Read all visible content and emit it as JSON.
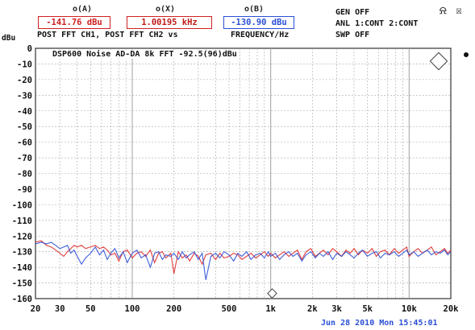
{
  "header": {
    "cursor_a_label": "o(A)",
    "cursor_x_label": "o(X)",
    "cursor_b_label": "o(B)",
    "cursor_a_value": "-141.76 dBu",
    "cursor_x_value": "1.00195 kHz",
    "cursor_b_value": "-130.90 dBu",
    "desc_left": "POST FFT CH1, POST FFT CH2 vs",
    "desc_right": "FREQUENCY/Hz"
  },
  "status": {
    "line1": "GEN OFF",
    "line2": "ANL 1:CONT 2:CONT",
    "line3": "SWP OFF",
    "icon1": "speaker-icon",
    "icon2": "mute-icon"
  },
  "timestamp": "Jun 28 2010 Mon 15:45:01",
  "colors": {
    "ch1": "#e02828",
    "ch2": "#2a4fd6",
    "grid": "#9a9a9a",
    "background": "#ffffff"
  },
  "chart_data": {
    "type": "line",
    "title": "DSP600 Noise AD-DA 8k FFT -92.5(96)dBu",
    "ylabel": "dBu",
    "xlabel": "",
    "x_scale": "log",
    "xlim": [
      20,
      20000
    ],
    "ylim": [
      -160,
      0
    ],
    "y_ticks": [
      0,
      -10,
      -20,
      -30,
      -40,
      -50,
      -60,
      -70,
      -80,
      -90,
      -100,
      -110,
      -120,
      -130,
      -140,
      -150,
      -160
    ],
    "x_ticks": [
      {
        "value": 20,
        "label": "20"
      },
      {
        "value": 30,
        "label": "30"
      },
      {
        "value": 50,
        "label": "50"
      },
      {
        "value": 100,
        "label": "100"
      },
      {
        "value": 200,
        "label": "200"
      },
      {
        "value": 500,
        "label": "500"
      },
      {
        "value": 1000,
        "label": "1k"
      },
      {
        "value": 2000,
        "label": "2k"
      },
      {
        "value": 3000,
        "label": "3k"
      },
      {
        "value": 5000,
        "label": "5k"
      },
      {
        "value": 10000,
        "label": "10k"
      },
      {
        "value": 20000,
        "label": "20k"
      }
    ],
    "grid": true,
    "series": [
      {
        "color": "#e02828",
        "x": [
          20,
          22,
          24,
          26,
          28,
          30,
          32,
          34,
          36,
          38,
          40,
          43,
          46,
          50,
          54,
          58,
          62,
          66,
          70,
          75,
          80,
          86,
          92,
          100,
          108,
          116,
          125,
          135,
          145,
          155,
          165,
          175,
          190,
          200,
          215,
          230,
          245,
          260,
          280,
          300,
          320,
          340,
          370,
          400,
          430,
          460,
          500,
          540,
          580,
          620,
          670,
          720,
          780,
          840,
          900,
          960,
          1000,
          1080,
          1160,
          1250,
          1350,
          1450,
          1560,
          1680,
          1800,
          1950,
          2100,
          2250,
          2400,
          2600,
          2800,
          3000,
          3250,
          3500,
          3750,
          4000,
          4300,
          4600,
          5000,
          5400,
          5800,
          6200,
          6700,
          7200,
          7800,
          8400,
          9000,
          9600,
          10000,
          10800,
          11600,
          12500,
          13500,
          14500,
          15600,
          16800,
          18000,
          19000,
          20000
        ],
        "y": [
          -124,
          -123,
          -126,
          -127,
          -129,
          -131,
          -133,
          -130,
          -128,
          -126,
          -127,
          -126,
          -128,
          -127,
          -126,
          -128,
          -127,
          -129,
          -132,
          -131,
          -136,
          -130,
          -129,
          -134,
          -131,
          -130,
          -133,
          -129,
          -137,
          -131,
          -130,
          -134,
          -131,
          -144,
          -130,
          -134,
          -132,
          -136,
          -131,
          -133,
          -138,
          -132,
          -131,
          -135,
          -131,
          -134,
          -133,
          -131,
          -132,
          -135,
          -133,
          -131,
          -134,
          -132,
          -130,
          -133,
          -131,
          -134,
          -132,
          -130,
          -133,
          -131,
          -129,
          -135,
          -130,
          -128,
          -133,
          -131,
          -129,
          -132,
          -128,
          -130,
          -133,
          -129,
          -131,
          -128,
          -132,
          -129,
          -131,
          -128,
          -133,
          -130,
          -129,
          -132,
          -128,
          -131,
          -129,
          -127,
          -133,
          -130,
          -128,
          -131,
          -129,
          -127,
          -132,
          -130,
          -128,
          -131,
          -129
        ]
      },
      {
        "color": "#2a4fd6",
        "x": [
          20,
          22,
          24,
          26,
          28,
          30,
          32,
          34,
          36,
          38,
          40,
          43,
          46,
          50,
          54,
          58,
          62,
          66,
          70,
          75,
          80,
          86,
          92,
          100,
          108,
          116,
          125,
          135,
          145,
          155,
          165,
          175,
          190,
          200,
          215,
          230,
          245,
          260,
          280,
          300,
          320,
          340,
          370,
          400,
          430,
          460,
          500,
          540,
          580,
          620,
          670,
          720,
          780,
          840,
          900,
          960,
          1000,
          1080,
          1160,
          1250,
          1350,
          1450,
          1560,
          1680,
          1800,
          1950,
          2100,
          2250,
          2400,
          2600,
          2800,
          3000,
          3250,
          3500,
          3750,
          4000,
          4300,
          4600,
          5000,
          5400,
          5800,
          6200,
          6700,
          7200,
          7800,
          8400,
          9000,
          9600,
          10000,
          10800,
          11600,
          12500,
          13500,
          14500,
          15600,
          16800,
          18000,
          19000,
          20000
        ],
        "y": [
          -125,
          -124,
          -125,
          -124,
          -126,
          -128,
          -127,
          -126,
          -131,
          -129,
          -133,
          -138,
          -134,
          -131,
          -127,
          -132,
          -129,
          -135,
          -131,
          -128,
          -134,
          -130,
          -137,
          -131,
          -129,
          -134,
          -132,
          -140,
          -131,
          -130,
          -135,
          -132,
          -133,
          -131,
          -135,
          -130,
          -134,
          -132,
          -130,
          -135,
          -131,
          -148,
          -133,
          -131,
          -134,
          -130,
          -132,
          -136,
          -131,
          -133,
          -130,
          -135,
          -132,
          -131,
          -134,
          -130,
          -133,
          -131,
          -135,
          -132,
          -130,
          -133,
          -131,
          -136,
          -132,
          -130,
          -134,
          -131,
          -133,
          -130,
          -135,
          -131,
          -133,
          -130,
          -132,
          -134,
          -131,
          -129,
          -133,
          -131,
          -130,
          -134,
          -131,
          -132,
          -130,
          -133,
          -131,
          -129,
          -132,
          -130,
          -133,
          -131,
          -129,
          -132,
          -130,
          -131,
          -129,
          -132,
          -130
        ]
      }
    ]
  }
}
